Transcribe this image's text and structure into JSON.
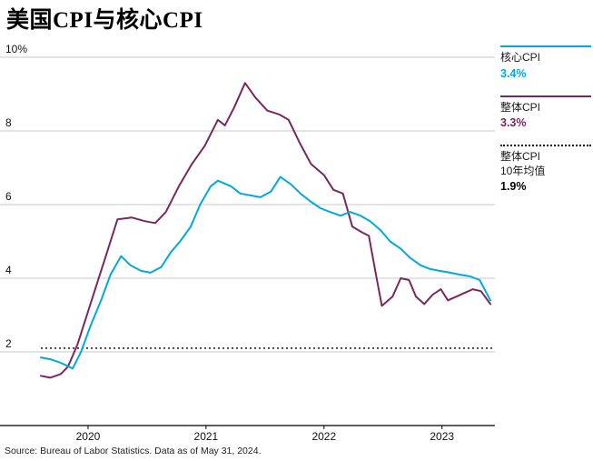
{
  "page": {
    "title": "美国CPI与核心CPI",
    "source": "Source: Bureau of Labor Statistics. Data as of May 31, 2024."
  },
  "legend": {
    "position": "right",
    "entries": [
      {
        "name": "核心CPI",
        "value": "3.4%",
        "color": "#00a9e0",
        "style": "solid"
      },
      {
        "name": "整体CPI",
        "value": "3.3%",
        "color": "#77295e",
        "style": "solid"
      },
      {
        "name": "整体CPI",
        "name2": "10年均值",
        "value": "1.9%",
        "color": "#000000",
        "style": "dotted"
      }
    ]
  },
  "chart_data": {
    "type": "line",
    "title": "美国CPI与核心CPI",
    "xlabel": "",
    "ylabel": "",
    "ylim": [
      0,
      10
    ],
    "grid": "horizontal",
    "legend_position": "right",
    "yticks": [
      {
        "value": 10,
        "label": "10%"
      },
      {
        "value": 8,
        "label": "8"
      },
      {
        "value": 6,
        "label": "6"
      },
      {
        "value": 4,
        "label": "4"
      },
      {
        "value": 2,
        "label": "2"
      }
    ],
    "xticks": [
      {
        "year": 2020,
        "label": "2020"
      },
      {
        "year": 2021,
        "label": "2021"
      },
      {
        "year": 2022,
        "label": "2022"
      },
      {
        "year": 2023,
        "label": "2023"
      }
    ],
    "x_range": [
      2019.6,
      2023.41
    ],
    "average_line": {
      "label": "整体CPI 10年均值",
      "value_label": "1.9%",
      "plot_level": 2.1,
      "color": "#000000",
      "style": "dotted"
    },
    "series": [
      {
        "name": "核心CPI",
        "color": "#00a9e0",
        "end_value": 3.4,
        "points": [
          [
            2019.6,
            1.85
          ],
          [
            2019.68,
            1.8
          ],
          [
            2019.77,
            1.7
          ],
          [
            2019.87,
            1.55
          ],
          [
            2019.94,
            2.0
          ],
          [
            2020.02,
            2.7
          ],
          [
            2020.11,
            3.4
          ],
          [
            2020.19,
            4.1
          ],
          [
            2020.28,
            4.6
          ],
          [
            2020.36,
            4.35
          ],
          [
            2020.45,
            4.2
          ],
          [
            2020.53,
            4.15
          ],
          [
            2020.62,
            4.3
          ],
          [
            2020.7,
            4.7
          ],
          [
            2020.78,
            5.0
          ],
          [
            2020.87,
            5.4
          ],
          [
            2020.95,
            6.0
          ],
          [
            2021.04,
            6.5
          ],
          [
            2021.1,
            6.65
          ],
          [
            2021.21,
            6.5
          ],
          [
            2021.29,
            6.3
          ],
          [
            2021.46,
            6.2
          ],
          [
            2021.55,
            6.35
          ],
          [
            2021.63,
            6.75
          ],
          [
            2021.72,
            6.55
          ],
          [
            2021.8,
            6.3
          ],
          [
            2021.88,
            6.1
          ],
          [
            2021.97,
            5.9
          ],
          [
            2022.05,
            5.8
          ],
          [
            2022.14,
            5.7
          ],
          [
            2022.22,
            5.8
          ],
          [
            2022.31,
            5.7
          ],
          [
            2022.39,
            5.55
          ],
          [
            2022.48,
            5.3
          ],
          [
            2022.56,
            5.0
          ],
          [
            2022.65,
            4.8
          ],
          [
            2022.73,
            4.55
          ],
          [
            2022.82,
            4.35
          ],
          [
            2022.9,
            4.25
          ],
          [
            2022.98,
            4.2
          ],
          [
            2023.07,
            4.15
          ],
          [
            2023.15,
            4.1
          ],
          [
            2023.24,
            4.05
          ],
          [
            2023.32,
            3.95
          ],
          [
            2023.41,
            3.4
          ]
        ]
      },
      {
        "name": "整体CPI",
        "color": "#77295e",
        "end_value": 3.3,
        "points": [
          [
            2019.6,
            1.35
          ],
          [
            2019.68,
            1.3
          ],
          [
            2019.77,
            1.4
          ],
          [
            2019.83,
            1.6
          ],
          [
            2019.91,
            2.2
          ],
          [
            2019.98,
            2.9
          ],
          [
            2020.06,
            3.7
          ],
          [
            2020.14,
            4.5
          ],
          [
            2020.25,
            5.6
          ],
          [
            2020.37,
            5.65
          ],
          [
            2020.48,
            5.55
          ],
          [
            2020.57,
            5.5
          ],
          [
            2020.66,
            5.8
          ],
          [
            2020.77,
            6.5
          ],
          [
            2020.88,
            7.1
          ],
          [
            2020.99,
            7.6
          ],
          [
            2021.1,
            8.3
          ],
          [
            2021.16,
            8.15
          ],
          [
            2021.24,
            8.65
          ],
          [
            2021.33,
            9.3
          ],
          [
            2021.42,
            8.9
          ],
          [
            2021.52,
            8.55
          ],
          [
            2021.62,
            8.45
          ],
          [
            2021.7,
            8.3
          ],
          [
            2021.79,
            7.7
          ],
          [
            2021.89,
            7.1
          ],
          [
            2022.0,
            6.8
          ],
          [
            2022.08,
            6.4
          ],
          [
            2022.16,
            6.3
          ],
          [
            2022.24,
            5.4
          ],
          [
            2022.32,
            5.25
          ],
          [
            2022.38,
            5.15
          ],
          [
            2022.44,
            4.1
          ],
          [
            2022.49,
            3.25
          ],
          [
            2022.58,
            3.5
          ],
          [
            2022.65,
            4.0
          ],
          [
            2022.72,
            3.95
          ],
          [
            2022.78,
            3.5
          ],
          [
            2022.85,
            3.3
          ],
          [
            2022.92,
            3.55
          ],
          [
            2022.99,
            3.7
          ],
          [
            2023.05,
            3.4
          ],
          [
            2023.12,
            3.5
          ],
          [
            2023.19,
            3.6
          ],
          [
            2023.26,
            3.7
          ],
          [
            2023.33,
            3.65
          ],
          [
            2023.41,
            3.3
          ]
        ]
      }
    ]
  }
}
